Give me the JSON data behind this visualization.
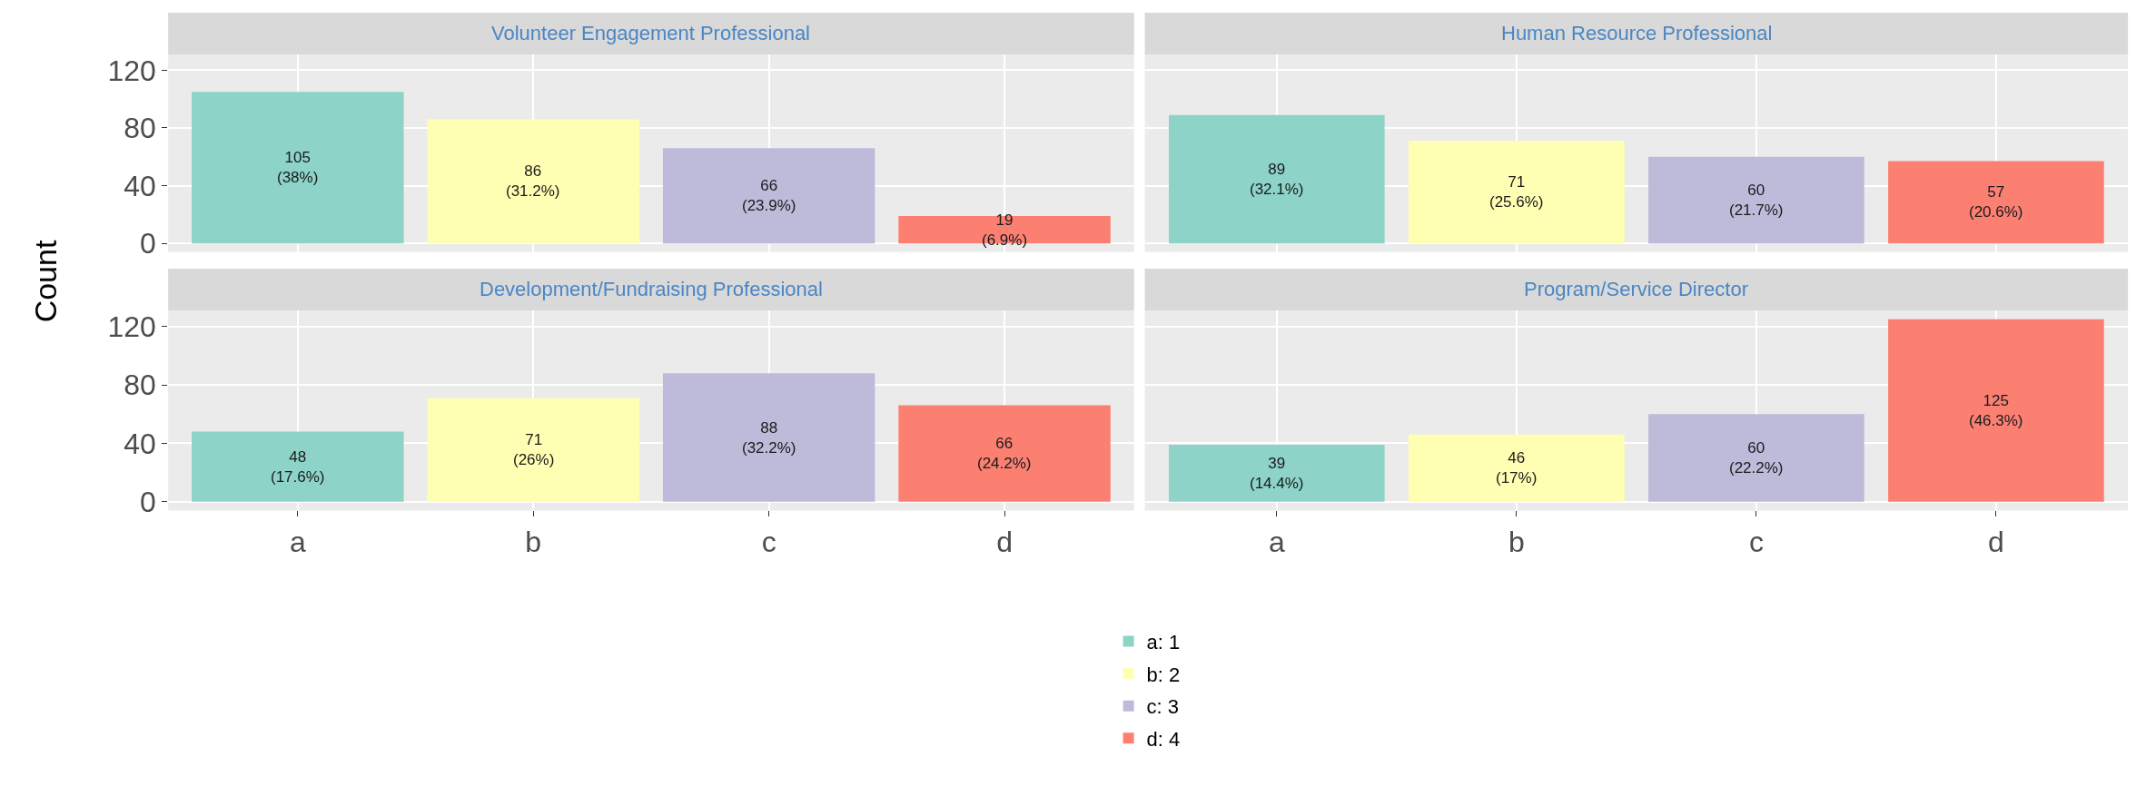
{
  "chart_data": [
    {
      "type": "bar",
      "title": "Volunteer Engagement Professional",
      "ylabel": "Count",
      "categories": [
        "a",
        "b",
        "c",
        "d"
      ],
      "ylim": [
        -6,
        131
      ],
      "yticks": [
        0,
        40,
        80,
        120
      ],
      "grid": true,
      "legend": "bottom",
      "tick_labels": "y",
      "series": [
        {
          "name": "a: 1",
          "color": "#8dd3c7",
          "values": [
            105,
            null,
            null,
            null
          ],
          "value_labels": [
            "105\n(38%)",
            null,
            null,
            null
          ]
        },
        {
          "name": "b: 2",
          "color": "#ffffb3",
          "values": [
            null,
            86,
            null,
            null
          ],
          "value_labels": [
            null,
            "86\n(31.2%)",
            null,
            null
          ]
        },
        {
          "name": "c: 3",
          "color": "#bebada",
          "values": [
            null,
            null,
            66,
            null
          ],
          "value_labels": [
            null,
            null,
            "66\n(23.9%)",
            null
          ]
        },
        {
          "name": "d: 4",
          "color": "#fb8072",
          "values": [
            null,
            null,
            null,
            19
          ],
          "value_labels": [
            null,
            null,
            null,
            "19\n(6.9%)"
          ]
        }
      ]
    },
    {
      "type": "bar",
      "title": "Human Resource Professional",
      "categories": [
        "a",
        "b",
        "c",
        "d"
      ],
      "ylim": [
        -6,
        131
      ],
      "yticks": [
        0,
        40,
        80,
        120
      ],
      "grid": true,
      "tick_labels": false,
      "series": [
        {
          "color": "#8dd3c7",
          "values": [
            89,
            null,
            null,
            null
          ],
          "value_labels": [
            "89\n(32.1%)",
            null,
            null,
            null
          ]
        },
        {
          "color": "#ffffb3",
          "values": [
            null,
            71,
            null,
            null
          ],
          "value_labels": [
            null,
            "71\n(25.6%)",
            null,
            null
          ]
        },
        {
          "color": "#bebada",
          "values": [
            null,
            null,
            60,
            null
          ],
          "value_labels": [
            null,
            null,
            "60\n(21.7%)",
            null
          ]
        },
        {
          "color": "#fb8072",
          "values": [
            null,
            null,
            null,
            57
          ],
          "value_labels": [
            null,
            null,
            null,
            "57\n(20.6%)"
          ]
        }
      ]
    },
    {
      "type": "bar",
      "title": "Development/Fundraising Professional",
      "categories": [
        "a",
        "b",
        "c",
        "d"
      ],
      "ylim": [
        -6,
        131
      ],
      "yticks": [
        0,
        40,
        80,
        120
      ],
      "grid": true,
      "series": [
        {
          "color": "#8dd3c7",
          "values": [
            48,
            null,
            null,
            null
          ],
          "value_labels": [
            "48\n(17.6%)",
            null,
            null,
            null
          ]
        },
        {
          "color": "#ffffb3",
          "values": [
            null,
            71,
            null,
            null
          ],
          "value_labels": [
            null,
            "71\n(26%)",
            null,
            null
          ]
        },
        {
          "color": "#bebada",
          "values": [
            null,
            null,
            88,
            null
          ],
          "value_labels": [
            null,
            null,
            "88\n(32.2%)",
            null
          ]
        },
        {
          "color": "#fb8072",
          "values": [
            null,
            null,
            null,
            66
          ],
          "value_labels": [
            null,
            null,
            null,
            "66\n(24.2%)"
          ]
        }
      ]
    },
    {
      "type": "bar",
      "title": "Program/Service Director",
      "categories": [
        "a",
        "b",
        "c",
        "d"
      ],
      "ylim": [
        -6,
        131
      ],
      "yticks": [
        0,
        40,
        80,
        120
      ],
      "grid": true,
      "tick_labels": "x",
      "series": [
        {
          "color": "#8dd3c7",
          "values": [
            39,
            null,
            null,
            null
          ],
          "value_labels": [
            "39\n(14.4%)",
            null,
            null,
            null
          ]
        },
        {
          "color": "#ffffb3",
          "values": [
            null,
            46,
            null,
            null
          ],
          "value_labels": [
            null,
            "46\n(17%)",
            null,
            null
          ]
        },
        {
          "color": "#bebada",
          "values": [
            null,
            null,
            60,
            null
          ],
          "value_labels": [
            null,
            null,
            "60\n(22.2%)",
            null
          ]
        },
        {
          "color": "#fb8072",
          "values": [
            null,
            null,
            null,
            125
          ],
          "value_labels": [
            null,
            null,
            null,
            "125\n(46.3%)"
          ]
        }
      ]
    }
  ]
}
